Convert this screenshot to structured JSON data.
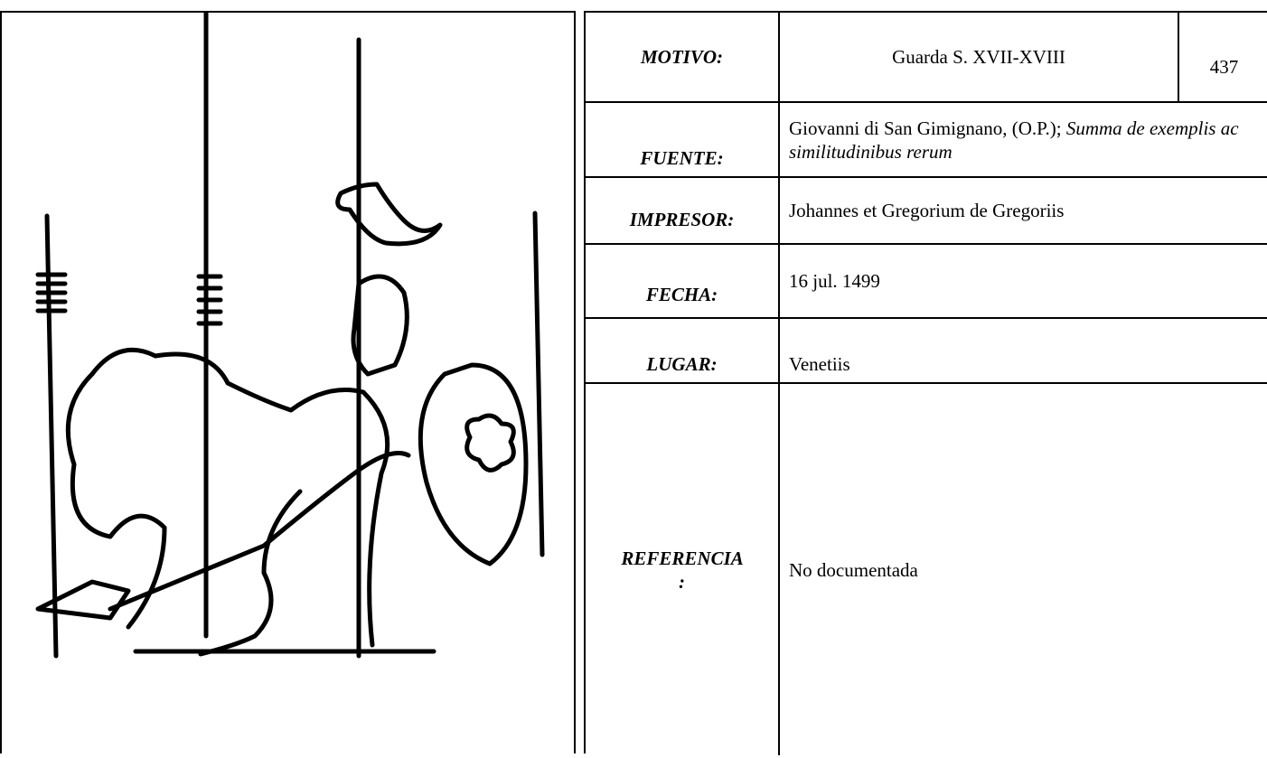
{
  "number": 437,
  "rows": [
    {
      "label": "MOTIVO:",
      "value": "Guarda S. XVII-XVIII"
    },
    {
      "label": "FUENTE:",
      "value": "Giovanni di San Gimignano, (O.P.); ",
      "value_italic": "Summa de exemplis ac similitudinibus rerum"
    },
    {
      "label": "IMPRESOR:",
      "value": "Johannes et Gregorium de Gregoriis"
    },
    {
      "label": "FECHA:",
      "value": "16 jul. 1499"
    },
    {
      "label": "LUGAR:",
      "value": "Venetiis"
    },
    {
      "label": "REFERENCIA :",
      "value": "No documentada"
    }
  ]
}
